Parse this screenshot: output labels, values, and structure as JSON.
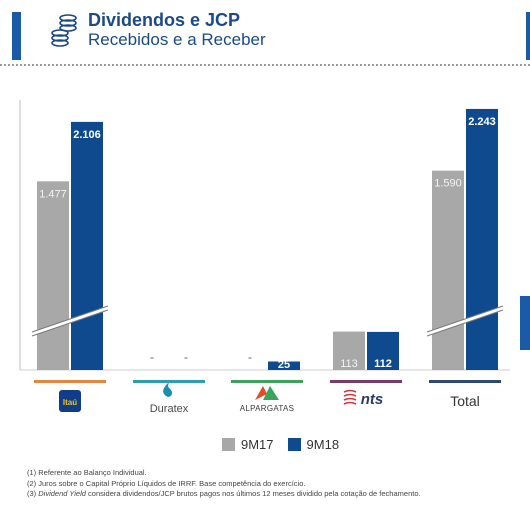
{
  "header": {
    "title": "Dividendos e JCP",
    "subtitle": "Recebidos e a Receber"
  },
  "colors": {
    "accent": "#1a5aa8",
    "title": "#1b4a86",
    "series_9m17": "#a8a8a8",
    "series_9m18": "#0f4a8f"
  },
  "chart_data": {
    "type": "bar",
    "categories": [
      "Itaú",
      "Duratex",
      "Alpargatas",
      "nts",
      "Total"
    ],
    "category_colors": [
      "#e8853a",
      "#2aa0b6",
      "#3aa45a",
      "#7a3a6a",
      "#2b4a7a"
    ],
    "series": [
      {
        "name": "9M17",
        "values": [
          1477,
          null,
          null,
          113,
          1590
        ],
        "labels": [
          "1.477",
          "-",
          "-",
          "113",
          "1.590"
        ]
      },
      {
        "name": "9M18",
        "values": [
          2106,
          null,
          25,
          112,
          2243
        ],
        "labels": [
          "2.106",
          "-",
          "25",
          "112",
          "2.243"
        ]
      }
    ],
    "axis_break": true,
    "legend": "bottom-center"
  },
  "footnotes": [
    "(1) Referente ao Balanço Individual.",
    "(2) Juros sobre o Capital Próprio Líquidos de IRRF. Base competência do exercício."
  ],
  "footnote3": {
    "em": "Dividend Yield",
    "rest": " considera dividendos/JCP brutos pagos nos últimos 12 meses dividido pela cotação de fechamento.",
    "prefix": "(3) "
  }
}
